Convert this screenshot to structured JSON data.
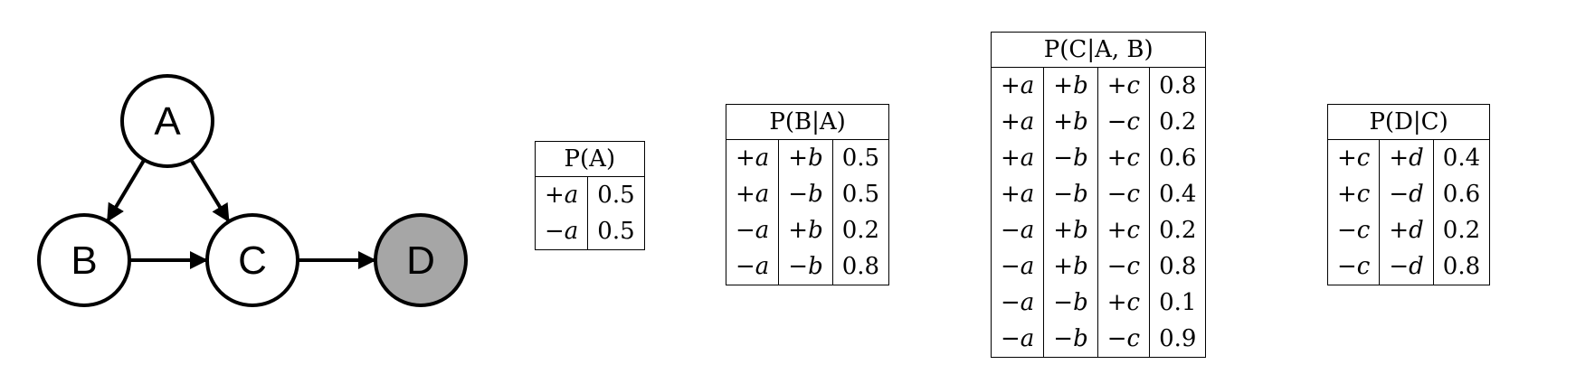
{
  "graph": {
    "nodes": [
      {
        "id": "A",
        "label": "A",
        "observed": false
      },
      {
        "id": "B",
        "label": "B",
        "observed": false
      },
      {
        "id": "C",
        "label": "C",
        "observed": false
      },
      {
        "id": "D",
        "label": "D",
        "observed": true
      }
    ],
    "edges": [
      {
        "from": "A",
        "to": "B"
      },
      {
        "from": "A",
        "to": "C"
      },
      {
        "from": "B",
        "to": "C"
      },
      {
        "from": "C",
        "to": "D"
      }
    ],
    "colors": {
      "observed_fill": "#a6a6a6",
      "unobserved_fill": "#ffffff",
      "stroke": "#000000"
    }
  },
  "tables": {
    "pa": {
      "title": "P(A)",
      "rows": [
        [
          "+a",
          "0.5"
        ],
        [
          "−a",
          "0.5"
        ]
      ]
    },
    "pba": {
      "title": "P(B|A)",
      "rows": [
        [
          "+a",
          "+b",
          "0.5"
        ],
        [
          "+a",
          "−b",
          "0.5"
        ],
        [
          "−a",
          "+b",
          "0.2"
        ],
        [
          "−a",
          "−b",
          "0.8"
        ]
      ]
    },
    "pcab": {
      "title": "P(C|A, B)",
      "rows": [
        [
          "+a",
          "+b",
          "+c",
          "0.8"
        ],
        [
          "+a",
          "+b",
          "−c",
          "0.2"
        ],
        [
          "+a",
          "−b",
          "+c",
          "0.6"
        ],
        [
          "+a",
          "−b",
          "−c",
          "0.4"
        ],
        [
          "−a",
          "+b",
          "+c",
          "0.2"
        ],
        [
          "−a",
          "+b",
          "−c",
          "0.8"
        ],
        [
          "−a",
          "−b",
          "+c",
          "0.1"
        ],
        [
          "−a",
          "−b",
          "−c",
          "0.9"
        ]
      ]
    },
    "pdc": {
      "title": "P(D|C)",
      "rows": [
        [
          "+c",
          "+d",
          "0.4"
        ],
        [
          "+c",
          "−d",
          "0.6"
        ],
        [
          "−c",
          "+d",
          "0.2"
        ],
        [
          "−c",
          "−d",
          "0.8"
        ]
      ]
    }
  }
}
